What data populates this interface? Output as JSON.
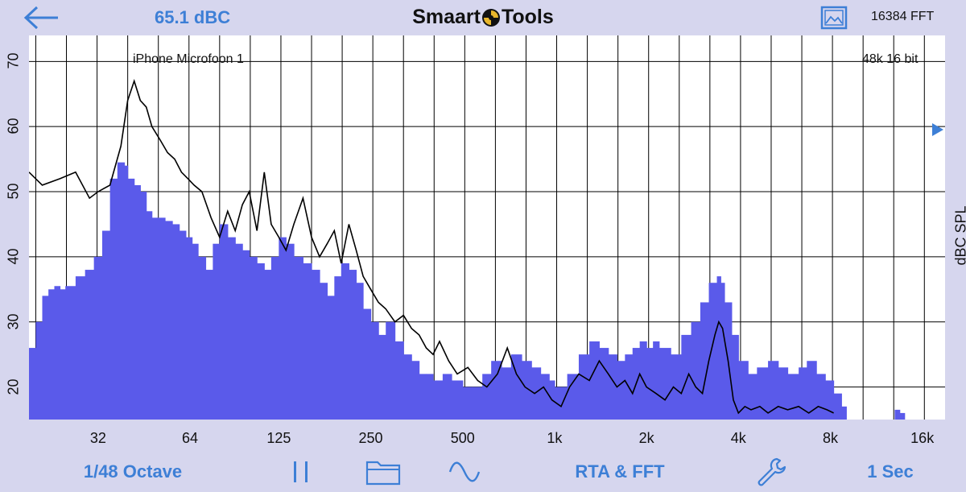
{
  "header": {
    "spl_readout": "65.1 dBC",
    "title_left": "Smaart",
    "title_right": "Tools",
    "fft_size": "16384 FFT"
  },
  "plot": {
    "input_label": "iPhone Microfoon 1",
    "format_label": "48k 16 bit",
    "y_axis_unit": "dBC SPL"
  },
  "colors": {
    "accent": "#3d7fd6",
    "rta_fill": "#5a5aea",
    "chrome": "#d6d6ee",
    "trace": "#000000"
  },
  "icons": {
    "back": "back-arrow-icon",
    "logo": "smaart-logo-icon",
    "image": "image-icon",
    "pause": "pause-icon",
    "folder": "folder-icon",
    "signal": "sine-wave-icon",
    "settings": "wrench-icon"
  },
  "toolbar": {
    "resolution": "1/48 Octave",
    "mode": "RTA & FFT",
    "averaging": "1 Sec"
  },
  "chart_data": {
    "type": "area",
    "xscale": "log",
    "xlim": [
      19,
      19000
    ],
    "ylim": [
      15,
      74
    ],
    "x_ticks": [
      {
        "value": 32,
        "label": "32"
      },
      {
        "value": 64,
        "label": "64"
      },
      {
        "value": 125,
        "label": "125"
      },
      {
        "value": 250,
        "label": "250"
      },
      {
        "value": 500,
        "label": "500"
      },
      {
        "value": 1000,
        "label": "1k"
      },
      {
        "value": 2000,
        "label": "2k"
      },
      {
        "value": 4000,
        "label": "4k"
      },
      {
        "value": 8000,
        "label": "8k"
      },
      {
        "value": 16000,
        "label": "16k"
      }
    ],
    "y_ticks": [
      20,
      30,
      40,
      50,
      60,
      70
    ],
    "grid": true,
    "series": [
      {
        "kind": "bars",
        "x": [
          19,
          20,
          21,
          22,
          23,
          24,
          25,
          27,
          29,
          31,
          33,
          35,
          37,
          39,
          40,
          42,
          44,
          46,
          48,
          50,
          53,
          56,
          59,
          62,
          65,
          68,
          72,
          76,
          80,
          85,
          90,
          95,
          100,
          106,
          112,
          118,
          125,
          132,
          140,
          150,
          160,
          170,
          180,
          190,
          200,
          212,
          224,
          236,
          250,
          265,
          280,
          300,
          320,
          340,
          360,
          380,
          400,
          430,
          460,
          500,
          540,
          580,
          620,
          670,
          720,
          780,
          840,
          900,
          960,
          1000,
          1100,
          1200,
          1300,
          1400,
          1500,
          1600,
          1700,
          1800,
          1900,
          2000,
          2100,
          2200,
          2400,
          2600,
          2800,
          3000,
          3200,
          3400,
          3500,
          3600,
          3800,
          4000,
          4300,
          4600,
          5000,
          5400,
          5800,
          6300,
          6700,
          7200,
          7700,
          8200,
          8700,
          13000,
          13500
        ],
        "y": [
          26,
          30,
          34,
          35,
          35.5,
          35,
          35.5,
          37,
          38,
          40,
          44,
          52,
          54.5,
          54,
          52,
          51,
          50,
          47,
          46,
          46,
          45.5,
          45,
          44,
          43,
          42,
          40,
          38,
          42,
          45,
          43,
          42,
          41,
          40,
          39,
          38,
          40,
          43,
          42,
          40,
          39,
          38,
          36,
          34,
          37,
          39,
          38,
          36,
          32,
          30,
          28,
          30,
          27,
          25,
          24,
          22,
          22,
          21,
          22,
          21,
          20,
          20,
          22,
          24,
          23,
          25,
          24,
          23,
          22,
          21,
          20,
          22,
          25,
          27,
          26,
          25,
          24,
          25,
          26,
          27,
          26,
          27,
          26,
          25,
          28,
          30,
          33,
          36,
          37,
          36,
          33,
          28,
          24,
          22,
          23,
          24,
          23,
          22,
          23,
          24,
          22,
          21,
          19,
          17,
          16.5,
          16
        ]
      },
      {
        "kind": "line",
        "x": [
          19,
          21,
          24,
          27,
          30,
          32,
          35,
          38,
          40,
          42,
          44,
          46,
          48,
          51,
          54,
          57,
          60,
          63,
          66,
          70,
          75,
          80,
          85,
          90,
          95,
          100,
          106,
          112,
          118,
          125,
          132,
          140,
          150,
          160,
          170,
          180,
          190,
          200,
          212,
          224,
          236,
          250,
          265,
          280,
          300,
          320,
          340,
          360,
          380,
          400,
          420,
          450,
          480,
          520,
          560,
          600,
          650,
          700,
          750,
          800,
          860,
          920,
          980,
          1050,
          1120,
          1200,
          1300,
          1400,
          1500,
          1600,
          1700,
          1800,
          1900,
          2000,
          2150,
          2300,
          2450,
          2600,
          2750,
          2900,
          3050,
          3200,
          3350,
          3450,
          3550,
          3700,
          3850,
          4000,
          4200,
          4400,
          4700,
          5000,
          5400,
          5800,
          6300,
          6800,
          7300,
          7800,
          8200
        ],
        "y": [
          53,
          51,
          52,
          53,
          49,
          50,
          51,
          57,
          64,
          67,
          64,
          63,
          60,
          58,
          56,
          55,
          53,
          52,
          51,
          50,
          46,
          43,
          47,
          44,
          48,
          50,
          44,
          53,
          45,
          43,
          41,
          45,
          49,
          43,
          40,
          42,
          44,
          39,
          45,
          41,
          37,
          35,
          33,
          32,
          30,
          31,
          29,
          28,
          26,
          25,
          27,
          24,
          22,
          23,
          21,
          20,
          22,
          26,
          22,
          20,
          19,
          20,
          18,
          17,
          20,
          22,
          21,
          24,
          22,
          20,
          21,
          19,
          22,
          20,
          19,
          18,
          20,
          19,
          22,
          20,
          19,
          24,
          28,
          30,
          29,
          24,
          18,
          16,
          17,
          16.5,
          17,
          16,
          17,
          16.5,
          17,
          16,
          17,
          16.5,
          16
        ]
      }
    ]
  }
}
